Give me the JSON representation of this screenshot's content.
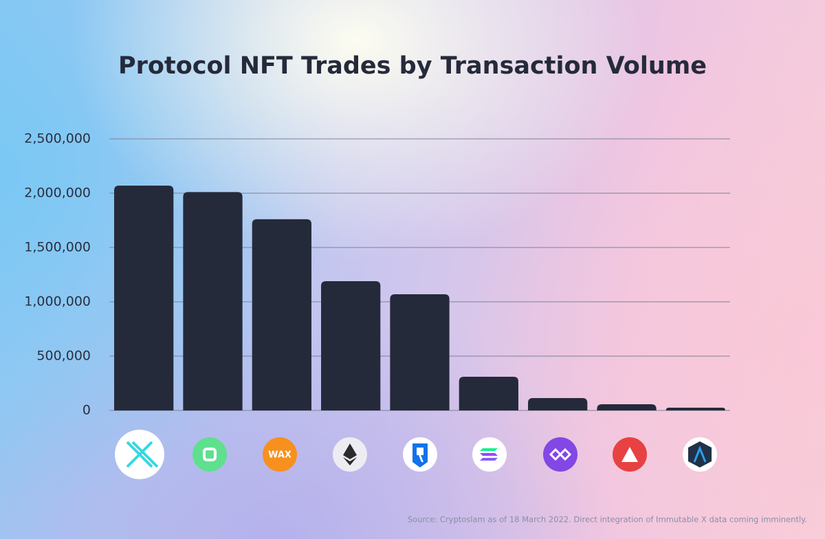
{
  "chart_data": {
    "type": "bar",
    "title": "Protocol  NFT Trades by Transaction Volume",
    "categories": [
      null,
      null,
      null,
      null,
      null,
      null,
      null,
      null,
      null
    ],
    "values": [
      2070000,
      2010000,
      1760000,
      1190000,
      1070000,
      310000,
      114000,
      57000,
      25000
    ],
    "color": "#252a3b",
    "ylim": [
      0,
      2500000
    ],
    "yticks": [
      0,
      {
        "value": 500000,
        "label": "500,000"
      },
      {
        "value": 1000000,
        "label": "1,000,000"
      },
      {
        "value": 1500000,
        "label": "1,500,000"
      },
      {
        "value": 2000000,
        "label": "2,000,000"
      },
      {
        "value": 2500000,
        "label": "2,500,000"
      }
    ],
    "grid": true,
    "source": "Source: Cryptoslam as of 18 March 2022. Direct integration of Immutable X data coming imminently."
  }
}
